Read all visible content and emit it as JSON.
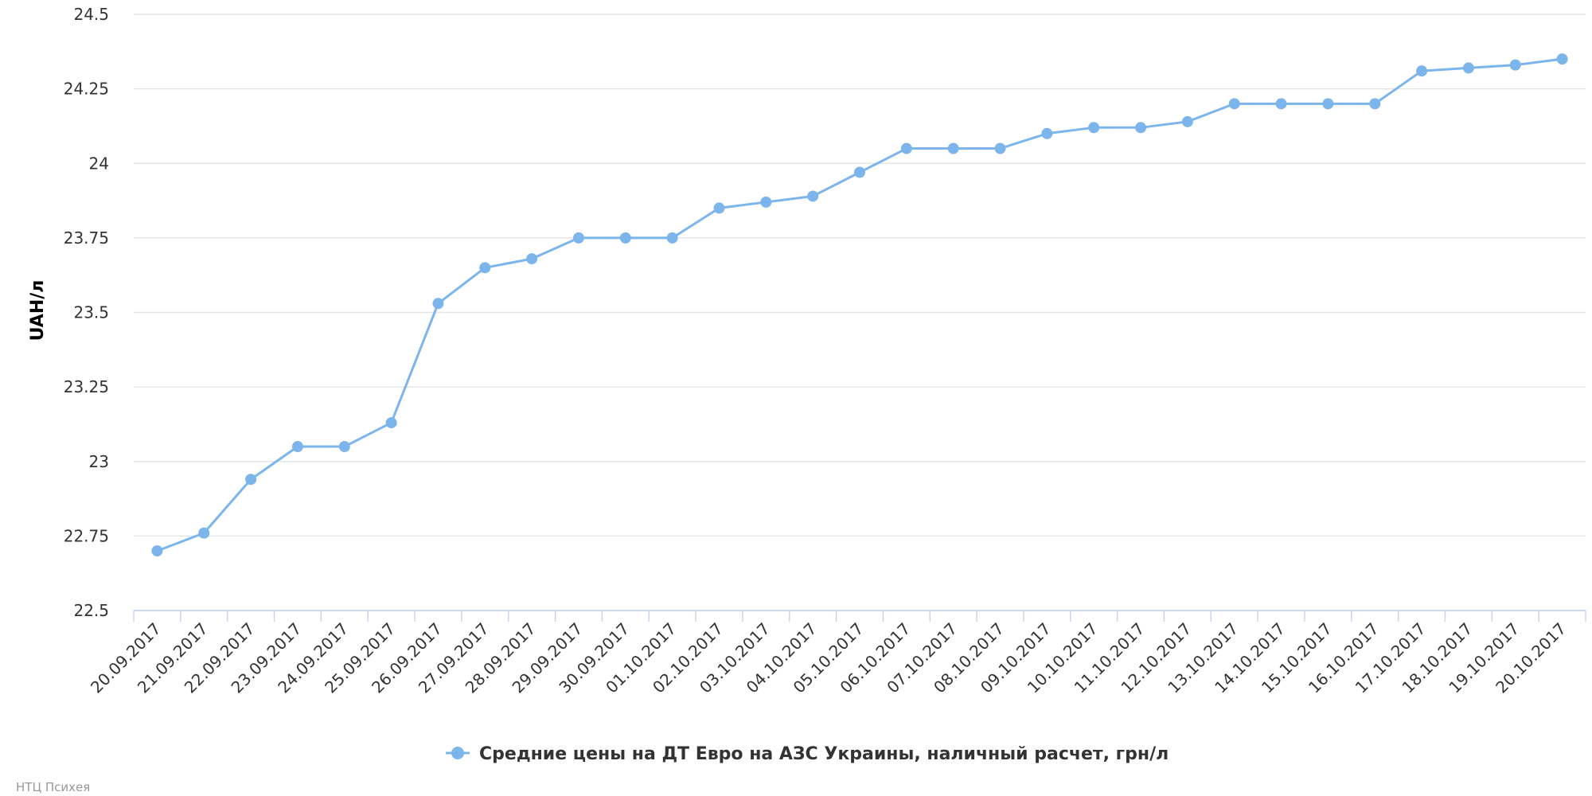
{
  "chart_data": {
    "type": "line",
    "ylabel": "UAH/л",
    "xlabel": "",
    "ylim": [
      22.5,
      24.5
    ],
    "yticks": [
      "22.5",
      "22.75",
      "23",
      "23.25",
      "23.5",
      "23.75",
      "24",
      "24.25",
      "24.5"
    ],
    "grid": true,
    "legend_position": "bottom-center",
    "categories": [
      "20.09.2017",
      "21.09.2017",
      "22.09.2017",
      "23.09.2017",
      "24.09.2017",
      "25.09.2017",
      "26.09.2017",
      "27.09.2017",
      "28.09.2017",
      "29.09.2017",
      "30.09.2017",
      "01.10.2017",
      "02.10.2017",
      "03.10.2017",
      "04.10.2017",
      "05.10.2017",
      "06.10.2017",
      "07.10.2017",
      "08.10.2017",
      "09.10.2017",
      "10.10.2017",
      "11.10.2017",
      "12.10.2017",
      "13.10.2017",
      "14.10.2017",
      "15.10.2017",
      "16.10.2017",
      "17.10.2017",
      "18.10.2017",
      "19.10.2017",
      "20.10.2017"
    ],
    "series": [
      {
        "name": "Средние цены на ДТ Евро на АЗС Украины, наличный расчет, грн/л",
        "color": "#7cb5ec",
        "values": [
          22.7,
          22.76,
          22.94,
          23.05,
          23.05,
          23.13,
          23.53,
          23.65,
          23.68,
          23.75,
          23.75,
          23.75,
          23.85,
          23.87,
          23.89,
          23.97,
          24.05,
          24.05,
          24.05,
          24.1,
          24.12,
          24.12,
          24.14,
          24.2,
          24.2,
          24.2,
          24.2,
          24.31,
          24.32,
          24.33,
          24.35
        ]
      }
    ]
  },
  "credit": "НТЦ Психея"
}
